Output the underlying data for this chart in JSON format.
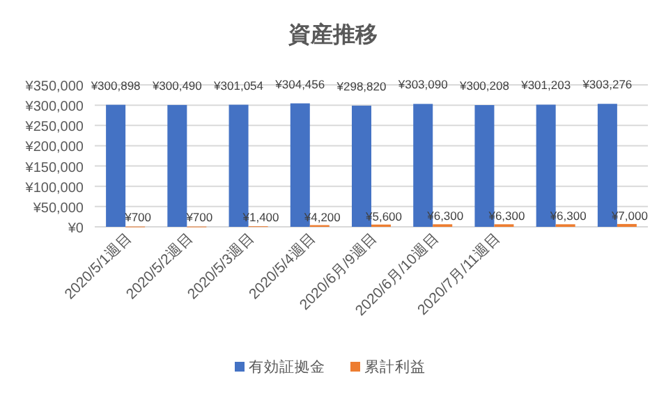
{
  "chart_data": {
    "type": "bar",
    "title": "資産推移",
    "categories": [
      "2020/5/1週目",
      "2020/5/2週目",
      "2020/5/3週目",
      "2020/5/4週目",
      "2020/6月/9週目",
      "2020/6月/10週目",
      "2020/7月/11週目",
      null,
      null
    ],
    "series": [
      {
        "name": "有効証拠金",
        "color": "#4472c4",
        "values": [
          300898,
          300490,
          301054,
          304456,
          298820,
          303090,
          300208,
          301203,
          303276
        ],
        "value_labels": [
          "¥300,898",
          "¥300,490",
          "¥301,054",
          "¥304,456",
          "¥298,820",
          "¥303,090",
          "¥300,208",
          "¥301,203",
          "¥303,276"
        ]
      },
      {
        "name": "累計利益",
        "color": "#ed7d31",
        "values": [
          700,
          700,
          1400,
          4200,
          5600,
          6300,
          6300,
          6300,
          7000
        ],
        "value_labels": [
          "¥700",
          "¥700",
          "¥1,400",
          "¥4,200",
          "¥5,600",
          "¥6,300",
          "¥6,300",
          "¥6,300",
          "¥7,000"
        ]
      }
    ],
    "ylim": [
      0,
      350000
    ],
    "yticks": [
      {
        "value": 0,
        "label": "¥0"
      },
      {
        "value": 50000,
        "label": "¥50,000"
      },
      {
        "value": 100000,
        "label": "¥100,000"
      },
      {
        "value": 150000,
        "label": "¥150,000"
      },
      {
        "value": 200000,
        "label": "¥200,000"
      },
      {
        "value": 250000,
        "label": "¥250,000"
      },
      {
        "value": 300000,
        "label": "¥300,000"
      },
      {
        "value": 350000,
        "label": "¥350,000"
      }
    ],
    "grid": "y",
    "legend": "bottom"
  }
}
